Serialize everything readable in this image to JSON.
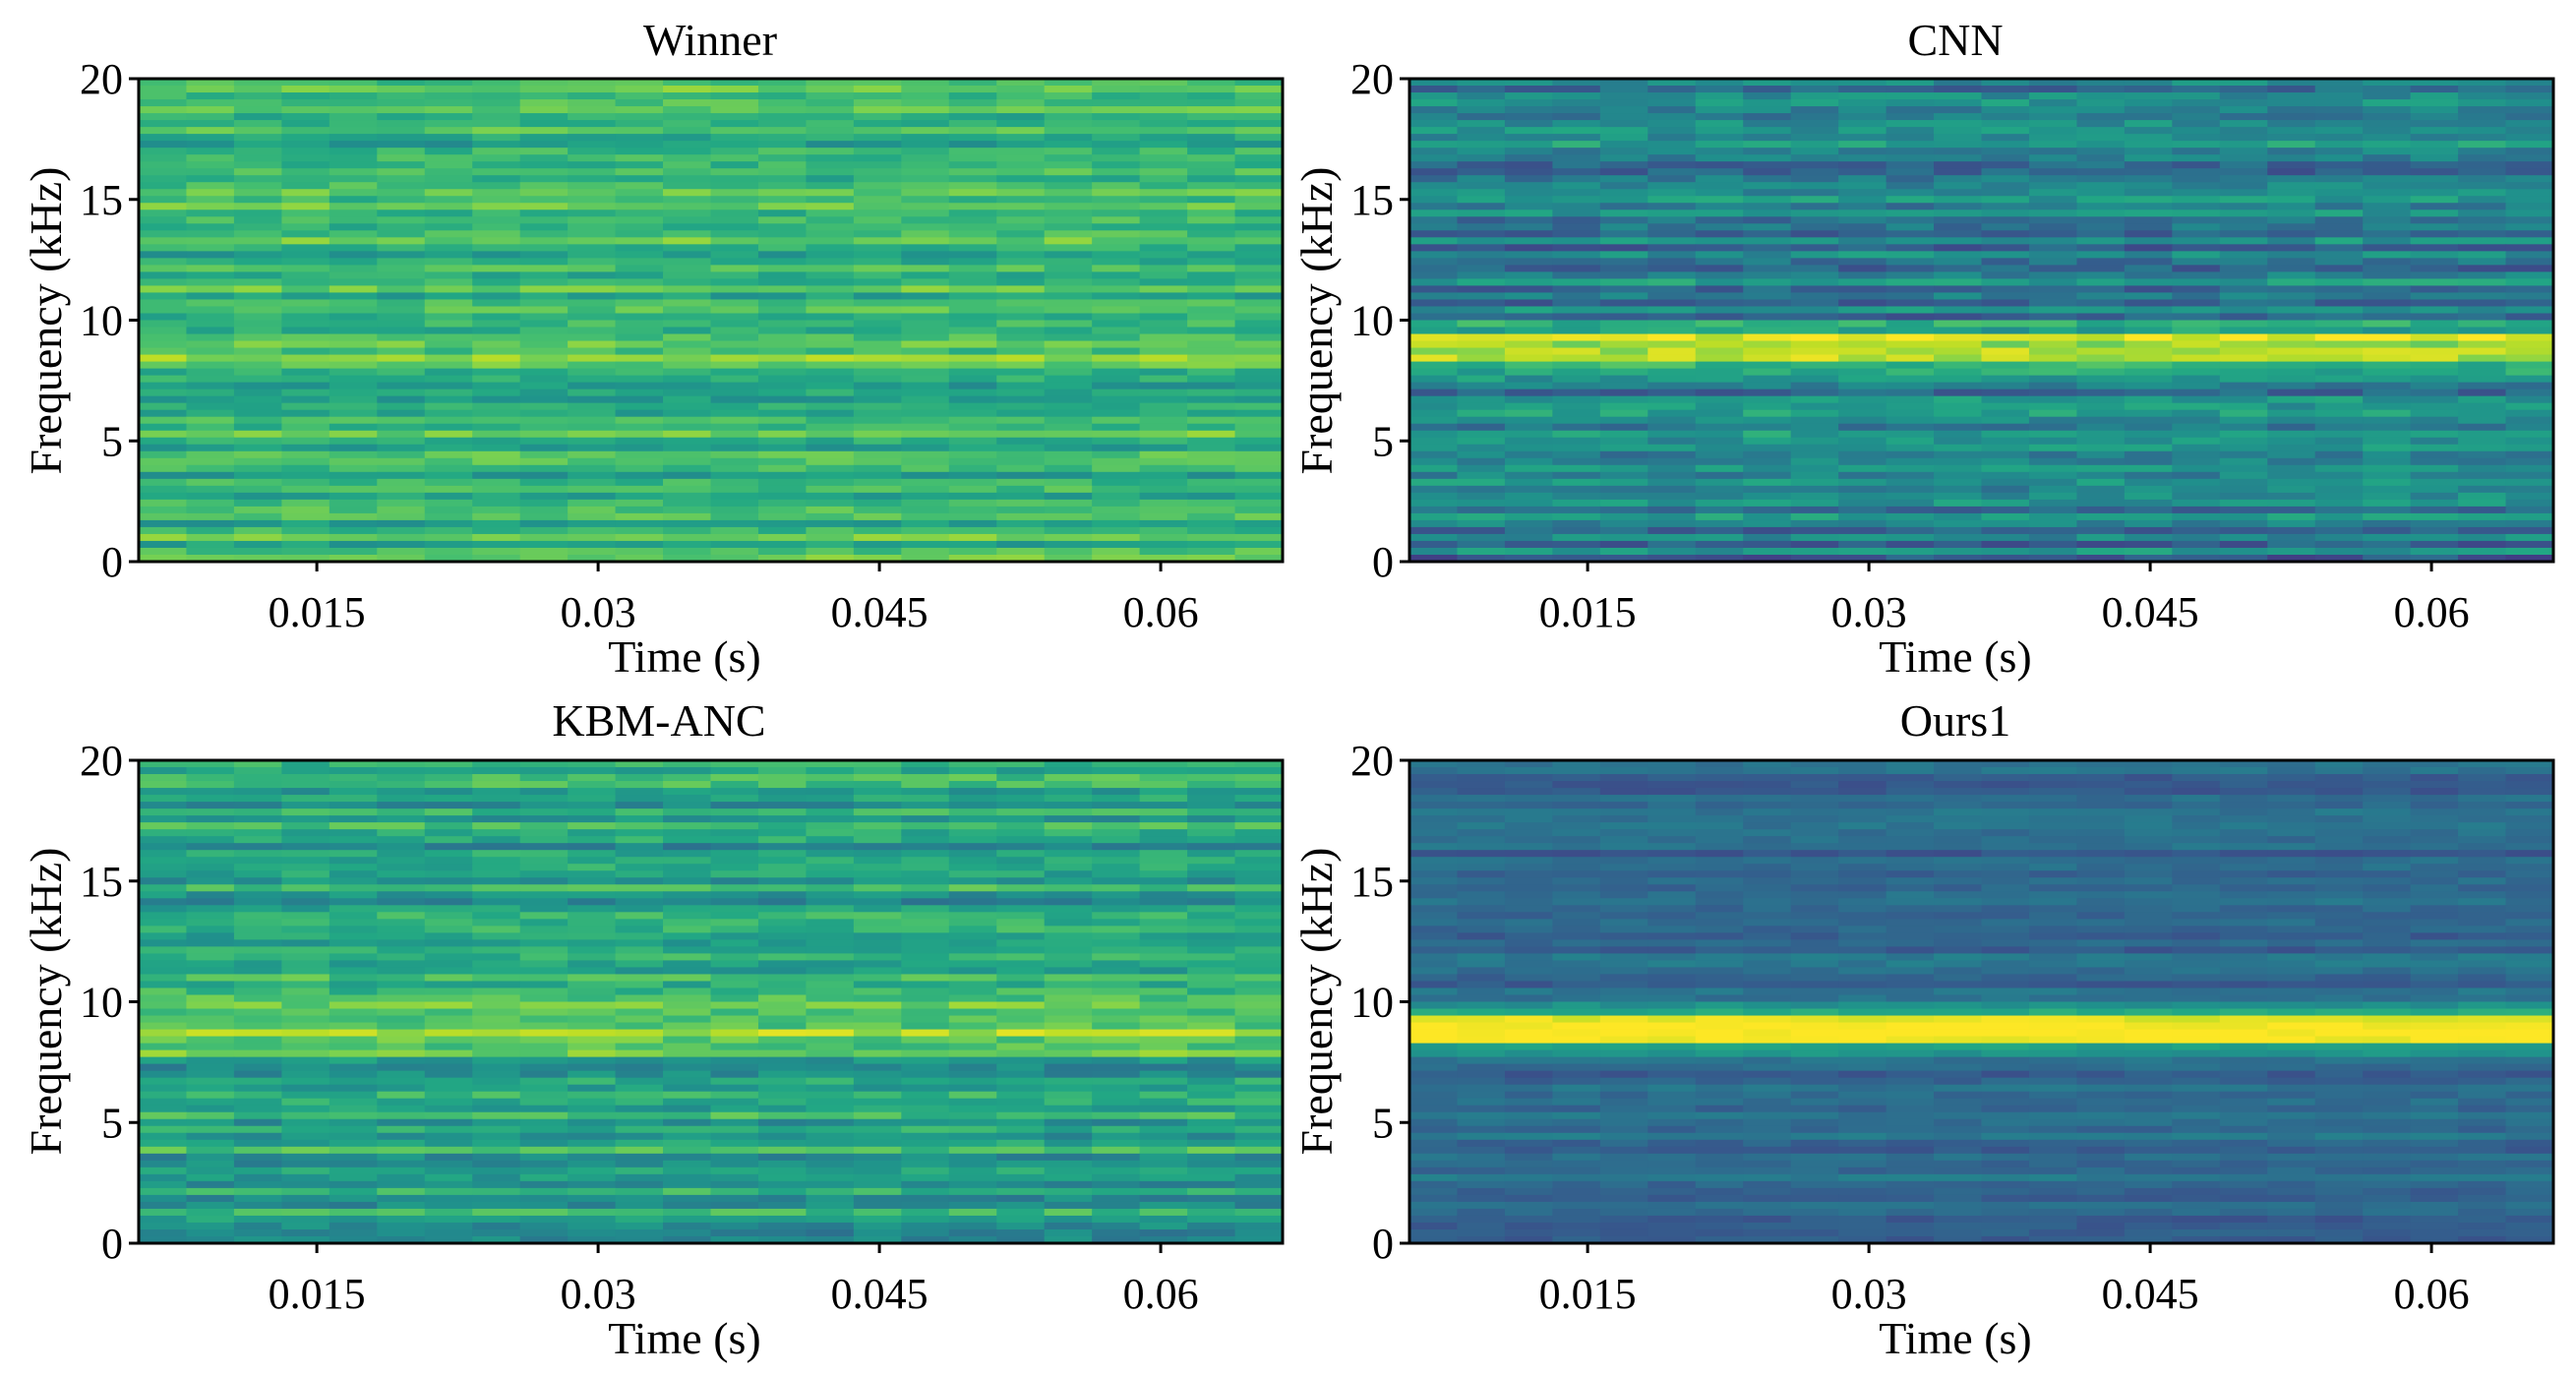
{
  "chart_data": [
    {
      "type": "heatmap",
      "title": "Winner",
      "xlabel": "Time (s)",
      "ylabel": "Frequency (kHz)",
      "xticks": [
        "0.015",
        "0.03",
        "0.045",
        "0.06"
      ],
      "xtick_values": [
        0.015,
        0.03,
        0.045,
        0.06
      ],
      "yticks": [
        "0",
        "5",
        "10",
        "15",
        "20"
      ],
      "ytick_values": [
        0,
        5,
        10,
        15,
        20
      ],
      "xlim": [
        0.0055,
        0.0665
      ],
      "ylim": [
        0,
        20
      ],
      "colormap": "viridis",
      "intensity": {
        "base": 0.66,
        "noise": 0.18,
        "tone_khz": 8.9,
        "tone_strength": 0.12,
        "low_start": 0.0,
        "low_end": 0.0
      }
    },
    {
      "type": "heatmap",
      "title": "CNN",
      "xlabel": "Time (s)",
      "ylabel": "Frequency (kHz)",
      "xticks": [
        "0.015",
        "0.03",
        "0.045",
        "0.06"
      ],
      "xtick_values": [
        0.015,
        0.03,
        0.045,
        0.06
      ],
      "yticks": [
        "0",
        "5",
        "10",
        "15",
        "20"
      ],
      "ytick_values": [
        0,
        5,
        10,
        15,
        20
      ],
      "xlim": [
        0.0055,
        0.0665
      ],
      "ylim": [
        0,
        20
      ],
      "colormap": "viridis",
      "intensity": {
        "base": 0.42,
        "noise": 0.22,
        "tone_khz": 8.9,
        "tone_strength": 0.5,
        "low_start": 0.0,
        "low_end": 0.0
      }
    },
    {
      "type": "heatmap",
      "title": "KBM-ANC",
      "xlabel": "Time (s)",
      "ylabel": "Frequency (kHz)",
      "xticks": [
        "0.015",
        "0.03",
        "0.045",
        "0.06"
      ],
      "xtick_values": [
        0.015,
        0.03,
        0.045,
        0.06
      ],
      "yticks": [
        "0",
        "5",
        "10",
        "15",
        "20"
      ],
      "ytick_values": [
        0,
        5,
        10,
        15,
        20
      ],
      "xlim": [
        0.0055,
        0.0665
      ],
      "ylim": [
        0,
        20
      ],
      "colormap": "viridis",
      "intensity": {
        "base": 0.58,
        "noise": 0.2,
        "tone_khz": 8.9,
        "tone_strength": 0.28,
        "low_start": 0.0,
        "low_end": 0.0
      }
    },
    {
      "type": "heatmap",
      "title": "Ours1",
      "xlabel": "Time (s)",
      "ylabel": "Frequency (kHz)",
      "xticks": [
        "0.015",
        "0.03",
        "0.045",
        "0.06"
      ],
      "xtick_values": [
        0.015,
        0.03,
        0.045,
        0.06
      ],
      "yticks": [
        "0",
        "5",
        "10",
        "15",
        "20"
      ],
      "ytick_values": [
        0,
        5,
        10,
        15,
        20
      ],
      "xlim": [
        0.0055,
        0.0665
      ],
      "ylim": [
        0,
        20
      ],
      "colormap": "viridis",
      "intensity": {
        "base": 0.34,
        "noise": 0.1,
        "tone_khz": 8.8,
        "tone_strength": 0.62,
        "low_start": 0.0,
        "low_end": 0.0
      }
    }
  ]
}
